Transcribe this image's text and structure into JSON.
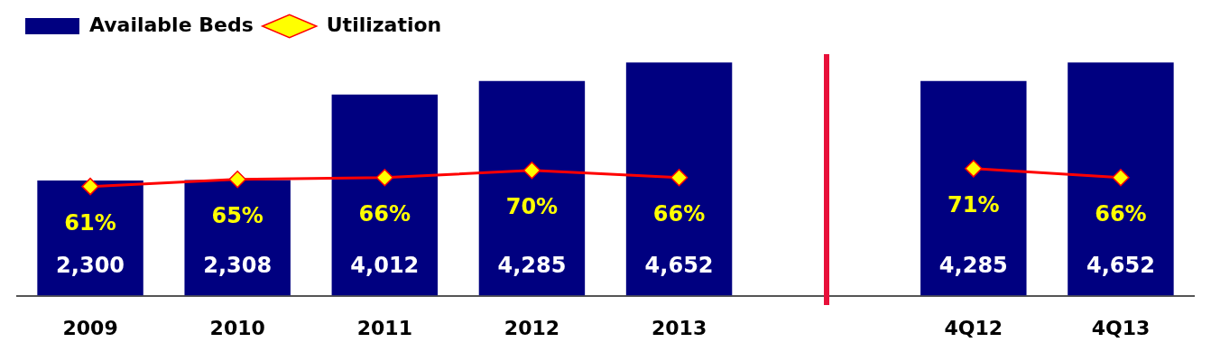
{
  "chart_data": {
    "type": "bar",
    "categories": [
      "2009",
      "2010",
      "2011",
      "2012",
      "2013",
      null,
      "4Q12",
      "4Q13"
    ],
    "series": [
      {
        "name": "Available Beds",
        "type": "bar",
        "color": "#000080",
        "values": [
          2300,
          2308,
          4012,
          4285,
          4652,
          null,
          4285,
          4652
        ],
        "value_labels": [
          "2,300",
          "2,308",
          "4,012",
          "4,285",
          "4,652",
          null,
          "4,285",
          "4,652"
        ]
      },
      {
        "name": "Utilization",
        "type": "line",
        "axis": "y2",
        "color": "#ff0000",
        "values": [
          61,
          65,
          66,
          70,
          66,
          null,
          71,
          66
        ],
        "value_labels": [
          "61%",
          "65%",
          "66%",
          "70%",
          "66%",
          null,
          "71%",
          "66%"
        ]
      }
    ],
    "marker": "diamond",
    "legend": "top left",
    "tick_labels": "x"
  }
}
